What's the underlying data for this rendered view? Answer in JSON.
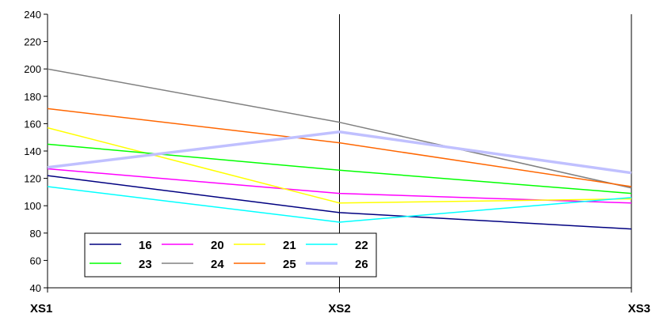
{
  "chart_data": {
    "type": "line",
    "categories": [
      "XS1",
      "XS2",
      "XS3"
    ],
    "ylim": [
      40,
      240
    ],
    "yticks": [
      40,
      60,
      80,
      100,
      120,
      140,
      160,
      180,
      200,
      220,
      240
    ],
    "grid": "vertical line at XS2 only",
    "legend_placement": "bottom-left",
    "series": [
      {
        "name": "16",
        "color": "#000080",
        "values": [
          122,
          95,
          83
        ]
      },
      {
        "name": "20",
        "color": "#ff00ff",
        "values": [
          127,
          109,
          102
        ]
      },
      {
        "name": "21",
        "color": "#ffff00",
        "values": [
          157,
          102,
          105
        ]
      },
      {
        "name": "22",
        "color": "#00ffff",
        "values": [
          114,
          88,
          106
        ]
      },
      {
        "name": "23",
        "color": "#00ff00",
        "values": [
          145,
          126,
          109
        ]
      },
      {
        "name": "24",
        "color": "#808080",
        "values": [
          200,
          161,
          113
        ]
      },
      {
        "name": "25",
        "color": "#ff6600",
        "values": [
          171,
          146,
          114
        ]
      },
      {
        "name": "26",
        "color": "#c0c0ff",
        "values": [
          128,
          154,
          124
        ]
      }
    ]
  }
}
